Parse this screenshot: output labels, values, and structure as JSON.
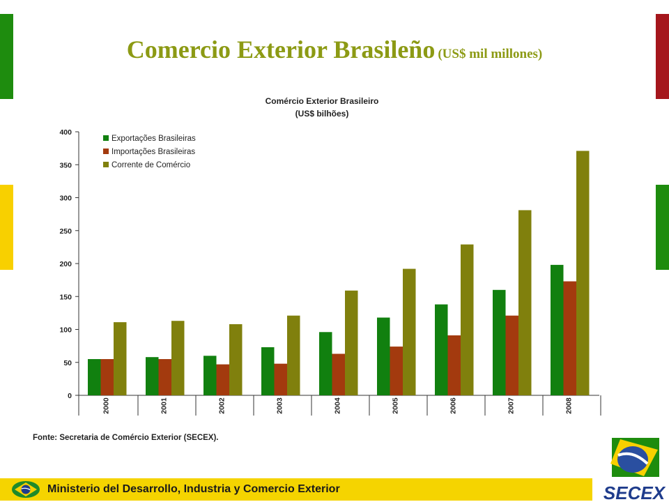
{
  "slide": {
    "title": "Comercio Exterior Brasileño",
    "title_unit": "(US$ mil millones)",
    "source": "Fonte: Secretaria de Comércio Exterior (SECEX).",
    "footer": "Ministerio del Desarrollo, Industria y Comercio Exterior",
    "logo_text": "SECEX",
    "colors": {
      "green": "#1e8c0e",
      "red": "#a5161c",
      "yellow": "#f8d000",
      "title": "#8c9a14",
      "footer_band": "#f5d400"
    }
  },
  "chart_data": {
    "type": "bar",
    "title": "Comércio Exterior Brasileiro",
    "subtitle": "(US$ bilhões)",
    "categories": [
      "2000",
      "2001",
      "2002",
      "2003",
      "2004",
      "2005",
      "2006",
      "2007",
      "2008"
    ],
    "series": [
      {
        "name": "Exportações Brasileiras",
        "color": "#11800f",
        "values": [
          55,
          58,
          60,
          73,
          96,
          118,
          138,
          160,
          198
        ]
      },
      {
        "name": "Importações Brasileiras",
        "color": "#a33a0e",
        "values": [
          55,
          55,
          47,
          48,
          63,
          74,
          91,
          121,
          173
        ]
      },
      {
        "name": "Corrente de Comércio",
        "color": "#80800d",
        "values": [
          111,
          113,
          108,
          121,
          159,
          192,
          229,
          281,
          371
        ]
      }
    ],
    "yticks": [
      "0",
      "50",
      "100",
      "150",
      "200",
      "250",
      "300",
      "350",
      "400"
    ],
    "ylim": [
      0,
      400
    ],
    "grid": false,
    "legend_position": "top-left"
  }
}
